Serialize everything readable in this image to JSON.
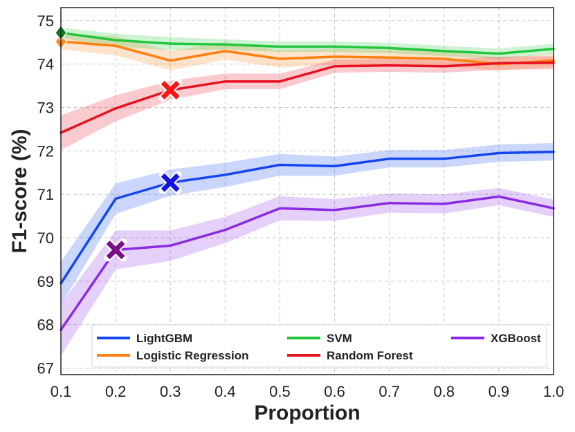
{
  "chart_data": {
    "type": "line",
    "title": "",
    "xlabel": "Proportion",
    "ylabel": "F1-score (%)",
    "xlim": [
      0.1,
      1.0
    ],
    "ylim": [
      66.85,
      75.3
    ],
    "grid": true,
    "legend_position": "bottom",
    "x": [
      0.1,
      0.2,
      0.3,
      0.4,
      0.5,
      0.6,
      0.7,
      0.8,
      0.9,
      1.0
    ],
    "x_tick_labels": [
      "0.1",
      "0.2",
      "0.3",
      "0.4",
      "0.5",
      "0.6",
      "0.7",
      "0.8",
      "0.9",
      "1.0"
    ],
    "y_ticks": [
      67,
      68,
      69,
      70,
      71,
      72,
      73,
      74,
      75
    ],
    "y_tick_labels": [
      "67",
      "68",
      "69",
      "70",
      "71",
      "72",
      "73",
      "74",
      "75"
    ],
    "series": [
      {
        "name": "LightGBM",
        "color": "#1446f0",
        "values": [
          68.95,
          70.9,
          71.27,
          71.45,
          71.68,
          71.65,
          71.82,
          71.82,
          71.95,
          71.98
        ],
        "band": [
          0.5,
          0.35,
          0.3,
          0.28,
          0.25,
          0.22,
          0.2,
          0.2,
          0.2,
          0.2
        ],
        "marker": {
          "x": 0.3,
          "y": 71.27,
          "color": "#1414e6"
        }
      },
      {
        "name": "Logistic Regression",
        "color": "#ff8010",
        "values": [
          74.52,
          74.42,
          74.08,
          74.3,
          74.12,
          74.17,
          74.15,
          74.12,
          74.0,
          74.08
        ],
        "band": [
          0.18,
          0.22,
          0.22,
          0.2,
          0.2,
          0.18,
          0.18,
          0.18,
          0.15,
          0.15
        ],
        "marker": {
          "x": 0.1,
          "y": 74.52,
          "color": "#ff8a1c"
        }
      },
      {
        "name": "SVM",
        "color": "#22c63a",
        "values": [
          74.72,
          74.55,
          74.47,
          74.45,
          74.4,
          74.4,
          74.37,
          74.3,
          74.24,
          74.35
        ],
        "band": [
          0.12,
          0.15,
          0.15,
          0.12,
          0.12,
          0.12,
          0.12,
          0.12,
          0.12,
          0.12
        ],
        "marker": {
          "x": 0.1,
          "y": 74.72,
          "color": "#0c7a1e"
        }
      },
      {
        "name": "Random Forest",
        "color": "#e61220",
        "values": [
          72.42,
          72.98,
          73.4,
          73.6,
          73.6,
          73.95,
          73.97,
          73.95,
          74.02,
          74.03
        ],
        "band": [
          0.4,
          0.3,
          0.22,
          0.18,
          0.18,
          0.15,
          0.15,
          0.15,
          0.15,
          0.15
        ],
        "marker": {
          "x": 0.3,
          "y": 73.4,
          "color": "#ff1414"
        }
      },
      {
        "name": "XGBoost",
        "color": "#8a2be2",
        "values": [
          67.88,
          69.72,
          69.82,
          70.18,
          70.68,
          70.64,
          70.8,
          70.78,
          70.95,
          70.68
        ],
        "band": [
          0.6,
          0.45,
          0.35,
          0.3,
          0.28,
          0.25,
          0.22,
          0.22,
          0.2,
          0.2
        ],
        "marker": {
          "x": 0.2,
          "y": 69.72,
          "color": "#7b0f8a"
        }
      }
    ],
    "legend": {
      "entries": [
        "LightGBM",
        "SVM",
        "XGBoost",
        "Logistic Regression",
        "Random Forest"
      ]
    }
  }
}
